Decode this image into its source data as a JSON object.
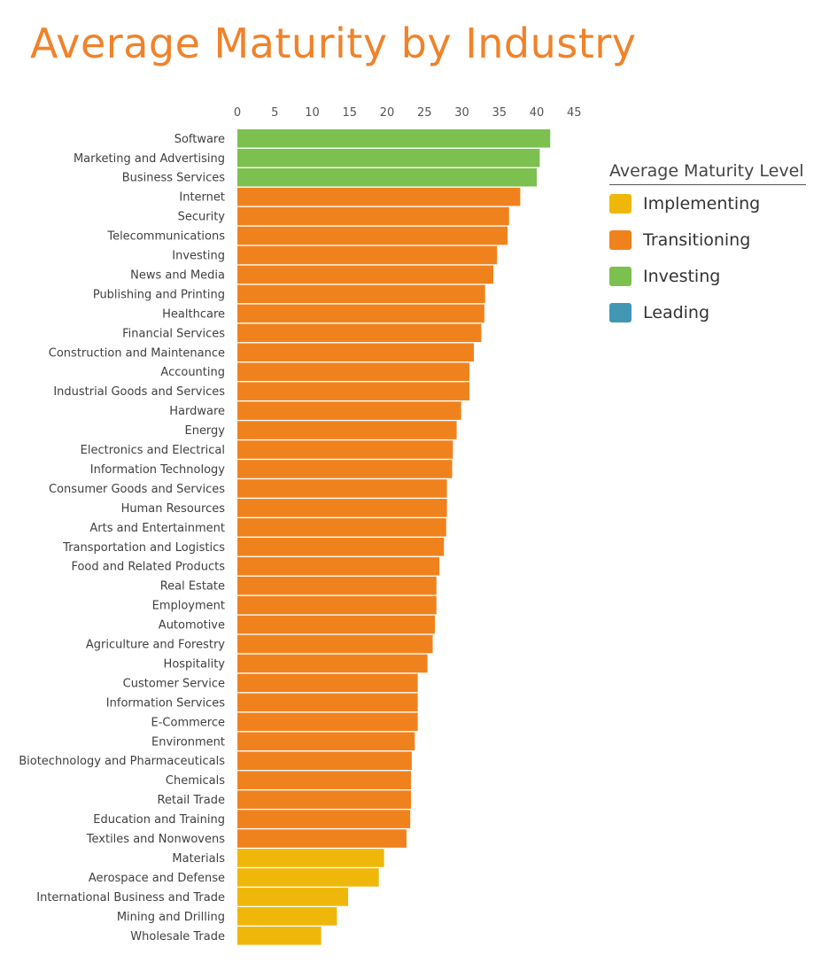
{
  "chart_data": {
    "type": "bar",
    "orientation": "horizontal",
    "title": "Average Maturity by Industry",
    "xlabel": "",
    "ylabel": "",
    "xlim": [
      0,
      45
    ],
    "x_ticks": [
      0,
      5,
      10,
      15,
      20,
      25,
      30,
      35,
      40,
      45
    ],
    "x_axis_position": "top",
    "grid": false,
    "legend": {
      "title": "Average Maturity Level",
      "position": "right",
      "items": [
        {
          "label": "Implementing",
          "color": "#f0b70b"
        },
        {
          "label": "Transitioning",
          "color": "#f0821e"
        },
        {
          "label": "Investing",
          "color": "#7cc04f"
        },
        {
          "label": "Leading",
          "color": "#4197b4"
        }
      ]
    },
    "categories": [
      "Software",
      "Marketing and Advertising",
      "Business Services",
      "Internet",
      "Security",
      "Telecommunications",
      "Investing",
      "News and Media",
      "Publishing and Printing",
      "Healthcare",
      "Financial Services",
      "Construction and Maintenance",
      "Accounting",
      "Industrial Goods and Services",
      "Hardware",
      "Energy",
      "Electronics and Electrical",
      "Information Technology",
      "Consumer Goods and Services",
      "Human Resources",
      "Arts and Entertainment",
      "Transportation and Logistics",
      "Food and Related Products",
      "Real Estate",
      "Employment",
      "Automotive",
      "Agriculture and Forestry",
      "Hospitality",
      "Customer Service",
      "Information Services",
      "E-Commerce",
      "Environment",
      "Biotechnology and Pharmaceuticals",
      "Chemicals",
      "Retail Trade",
      "Education and Training",
      "Textiles and Nonwovens",
      "Materials",
      "Aerospace and Defense",
      "International Business and Trade",
      "Mining and Drilling",
      "Wholesale Trade"
    ],
    "values": [
      41.8,
      40.4,
      40.0,
      37.8,
      36.3,
      36.1,
      34.7,
      34.2,
      33.1,
      33.0,
      32.6,
      31.6,
      31.0,
      31.0,
      29.9,
      29.3,
      28.8,
      28.7,
      28.0,
      28.0,
      27.9,
      27.6,
      27.0,
      26.6,
      26.6,
      26.4,
      26.1,
      25.4,
      24.1,
      24.1,
      24.1,
      23.7,
      23.3,
      23.2,
      23.2,
      23.1,
      22.6,
      19.6,
      18.9,
      14.8,
      13.3,
      11.2
    ],
    "levels": [
      "Investing",
      "Investing",
      "Investing",
      "Transitioning",
      "Transitioning",
      "Transitioning",
      "Transitioning",
      "Transitioning",
      "Transitioning",
      "Transitioning",
      "Transitioning",
      "Transitioning",
      "Transitioning",
      "Transitioning",
      "Transitioning",
      "Transitioning",
      "Transitioning",
      "Transitioning",
      "Transitioning",
      "Transitioning",
      "Transitioning",
      "Transitioning",
      "Transitioning",
      "Transitioning",
      "Transitioning",
      "Transitioning",
      "Transitioning",
      "Transitioning",
      "Transitioning",
      "Transitioning",
      "Transitioning",
      "Transitioning",
      "Transitioning",
      "Transitioning",
      "Transitioning",
      "Transitioning",
      "Transitioning",
      "Implementing",
      "Implementing",
      "Implementing",
      "Implementing",
      "Implementing"
    ]
  }
}
